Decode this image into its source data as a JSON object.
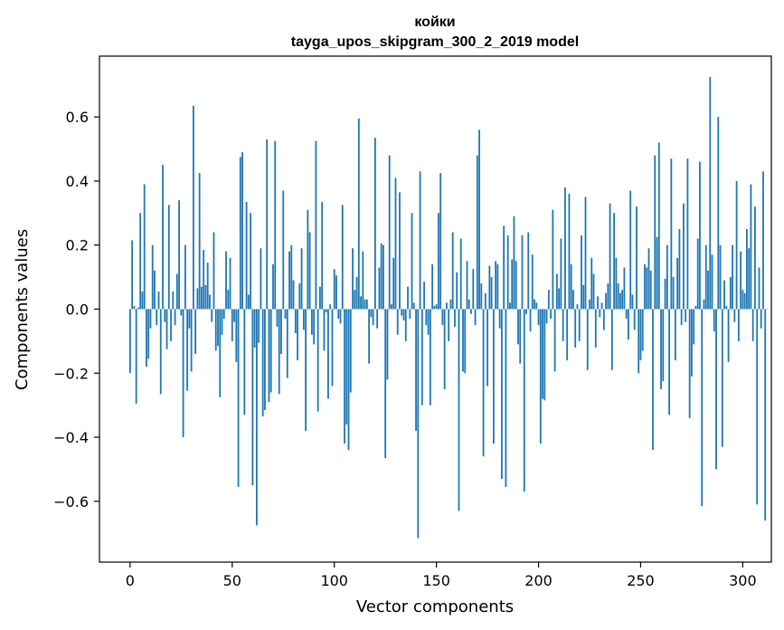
{
  "chart_data": {
    "type": "bar",
    "title": "койки",
    "subtitle": "tayga_upos_skipgram_300_2_2019 model",
    "xlabel": "Vector components",
    "ylabel": "Components values",
    "xlim": [
      -15,
      314
    ],
    "ylim": [
      -0.79,
      0.79
    ],
    "xticks": [
      0,
      50,
      100,
      150,
      200,
      250,
      300
    ],
    "xtick_labels": [
      "0",
      "50",
      "100",
      "150",
      "200",
      "250",
      "300"
    ],
    "yticks": [
      -0.6,
      -0.4,
      -0.2,
      0.0,
      0.2,
      0.4,
      0.6
    ],
    "ytick_labels": [
      "−0.6",
      "−0.4",
      "−0.2",
      "0.0",
      "0.2",
      "0.4",
      "0.6"
    ],
    "grid": false,
    "bar_color": "#1f77b4",
    "values": [
      -0.2,
      0.215,
      0.01,
      -0.295,
      0.005,
      0.3,
      0.055,
      0.39,
      -0.18,
      -0.155,
      -0.06,
      0.2,
      0.12,
      -0.05,
      0.055,
      -0.265,
      0.45,
      -0.04,
      -0.125,
      0.325,
      -0.1,
      0.055,
      -0.05,
      0.11,
      0.34,
      -0.02,
      -0.4,
      0.2,
      -0.255,
      -0.06,
      -0.195,
      0.635,
      -0.14,
      0.065,
      0.425,
      0.07,
      0.185,
      0.075,
      0.145,
      0.045,
      -0.04,
      0.24,
      -0.13,
      -0.115,
      -0.275,
      -0.08,
      -0.03,
      0.18,
      0.06,
      0.16,
      -0.1,
      -0.04,
      -0.165,
      -0.555,
      0.475,
      0.49,
      -0.33,
      0.335,
      0.045,
      0.3,
      -0.55,
      -0.12,
      -0.675,
      -0.105,
      0.19,
      -0.335,
      -0.315,
      0.53,
      -0.29,
      -0.26,
      0.14,
      0.525,
      -0.055,
      -0.265,
      -0.14,
      0.37,
      -0.03,
      -0.215,
      0.18,
      0.2,
      0.09,
      -0.075,
      -0.16,
      0.08,
      0.19,
      -0.065,
      -0.38,
      0.31,
      0.24,
      -0.08,
      -0.11,
      0.525,
      -0.32,
      0.07,
      0.335,
      -0.13,
      -0.01,
      -0.28,
      0.015,
      -0.24,
      0.125,
      0.105,
      -0.03,
      -0.045,
      0.325,
      -0.42,
      -0.36,
      -0.44,
      -0.26,
      0.19,
      0.06,
      0.1,
      0.595,
      0.04,
      0.18,
      0.03,
      0.03,
      -0.17,
      -0.025,
      -0.05,
      0.535,
      -0.06,
      0.13,
      0.205,
      0.2,
      -0.465,
      -0.22,
      0.48,
      0.015,
      0.16,
      0.41,
      -0.08,
      0.365,
      -0.02,
      -0.035,
      -0.1,
      0.07,
      -0.03,
      0.3,
      0.02,
      -0.38,
      -0.715,
      0.43,
      -0.3,
      0.085,
      -0.05,
      -0.08,
      -0.3,
      0.14,
      0.01,
      0.015,
      0.3,
      0.425,
      -0.05,
      -0.25,
      0.02,
      -0.1,
      0.03,
      0.24,
      -0.055,
      0.115,
      -0.63,
      0.22,
      -0.195,
      -0.2,
      0.15,
      0.03,
      -0.015,
      0.125,
      -0.05,
      0.48,
      0.56,
      0.08,
      -0.46,
      0.05,
      -0.24,
      0.135,
      0.1,
      -0.42,
      0.15,
      0.14,
      -0.06,
      -0.53,
      0.26,
      -0.555,
      0.23,
      0.02,
      0.155,
      0.29,
      0.15,
      -0.11,
      -0.17,
      0.23,
      -0.57,
      -0.015,
      0.24,
      -0.07,
      0.17,
      0.03,
      0.02,
      -0.05,
      -0.42,
      -0.28,
      -0.285,
      -0.045,
      0.06,
      -0.03,
      0.31,
      -0.195,
      0.11,
      0.065,
      0.22,
      -0.1,
      0.38,
      -0.16,
      0.36,
      0.14,
      0.06,
      -0.12,
      0.015,
      -0.1,
      0.23,
      0.075,
      0.35,
      -0.19,
      0.03,
      0.16,
      0.11,
      -0.12,
      0.04,
      -0.025,
      0.02,
      -0.065,
      0.05,
      0.08,
      0.33,
      -0.19,
      0.3,
      0.16,
      0.08,
      0.05,
      0.06,
      0.13,
      -0.03,
      -0.095,
      0.37,
      0.045,
      -0.065,
      0.32,
      -0.2,
      -0.16,
      -0.13,
      0.14,
      0.13,
      0.19,
      0.12,
      -0.44,
      0.48,
      0.225,
      0.52,
      -0.25,
      -0.225,
      0.095,
      0.2,
      -0.33,
      0.47,
      0.1,
      -0.16,
      0.16,
      0.25,
      -0.05,
      0.33,
      -0.04,
      0.47,
      -0.34,
      -0.21,
      -0.11,
      0.01,
      0.22,
      0.46,
      -0.615,
      0.03,
      0.2,
      0.12,
      0.725,
      0.17,
      -0.07,
      -0.5,
      0.6,
      0.2,
      -0.43,
      0.09,
      0.01,
      -0.165,
      0.1,
      0.2,
      -0.04,
      0.4,
      -0.1,
      0.18,
      0.06,
      0.05,
      0.25,
      0.19,
      0.39,
      -0.1,
      0.32,
      -0.61,
      0.13,
      -0.06,
      0.43,
      -0.66,
      0.0
    ]
  }
}
